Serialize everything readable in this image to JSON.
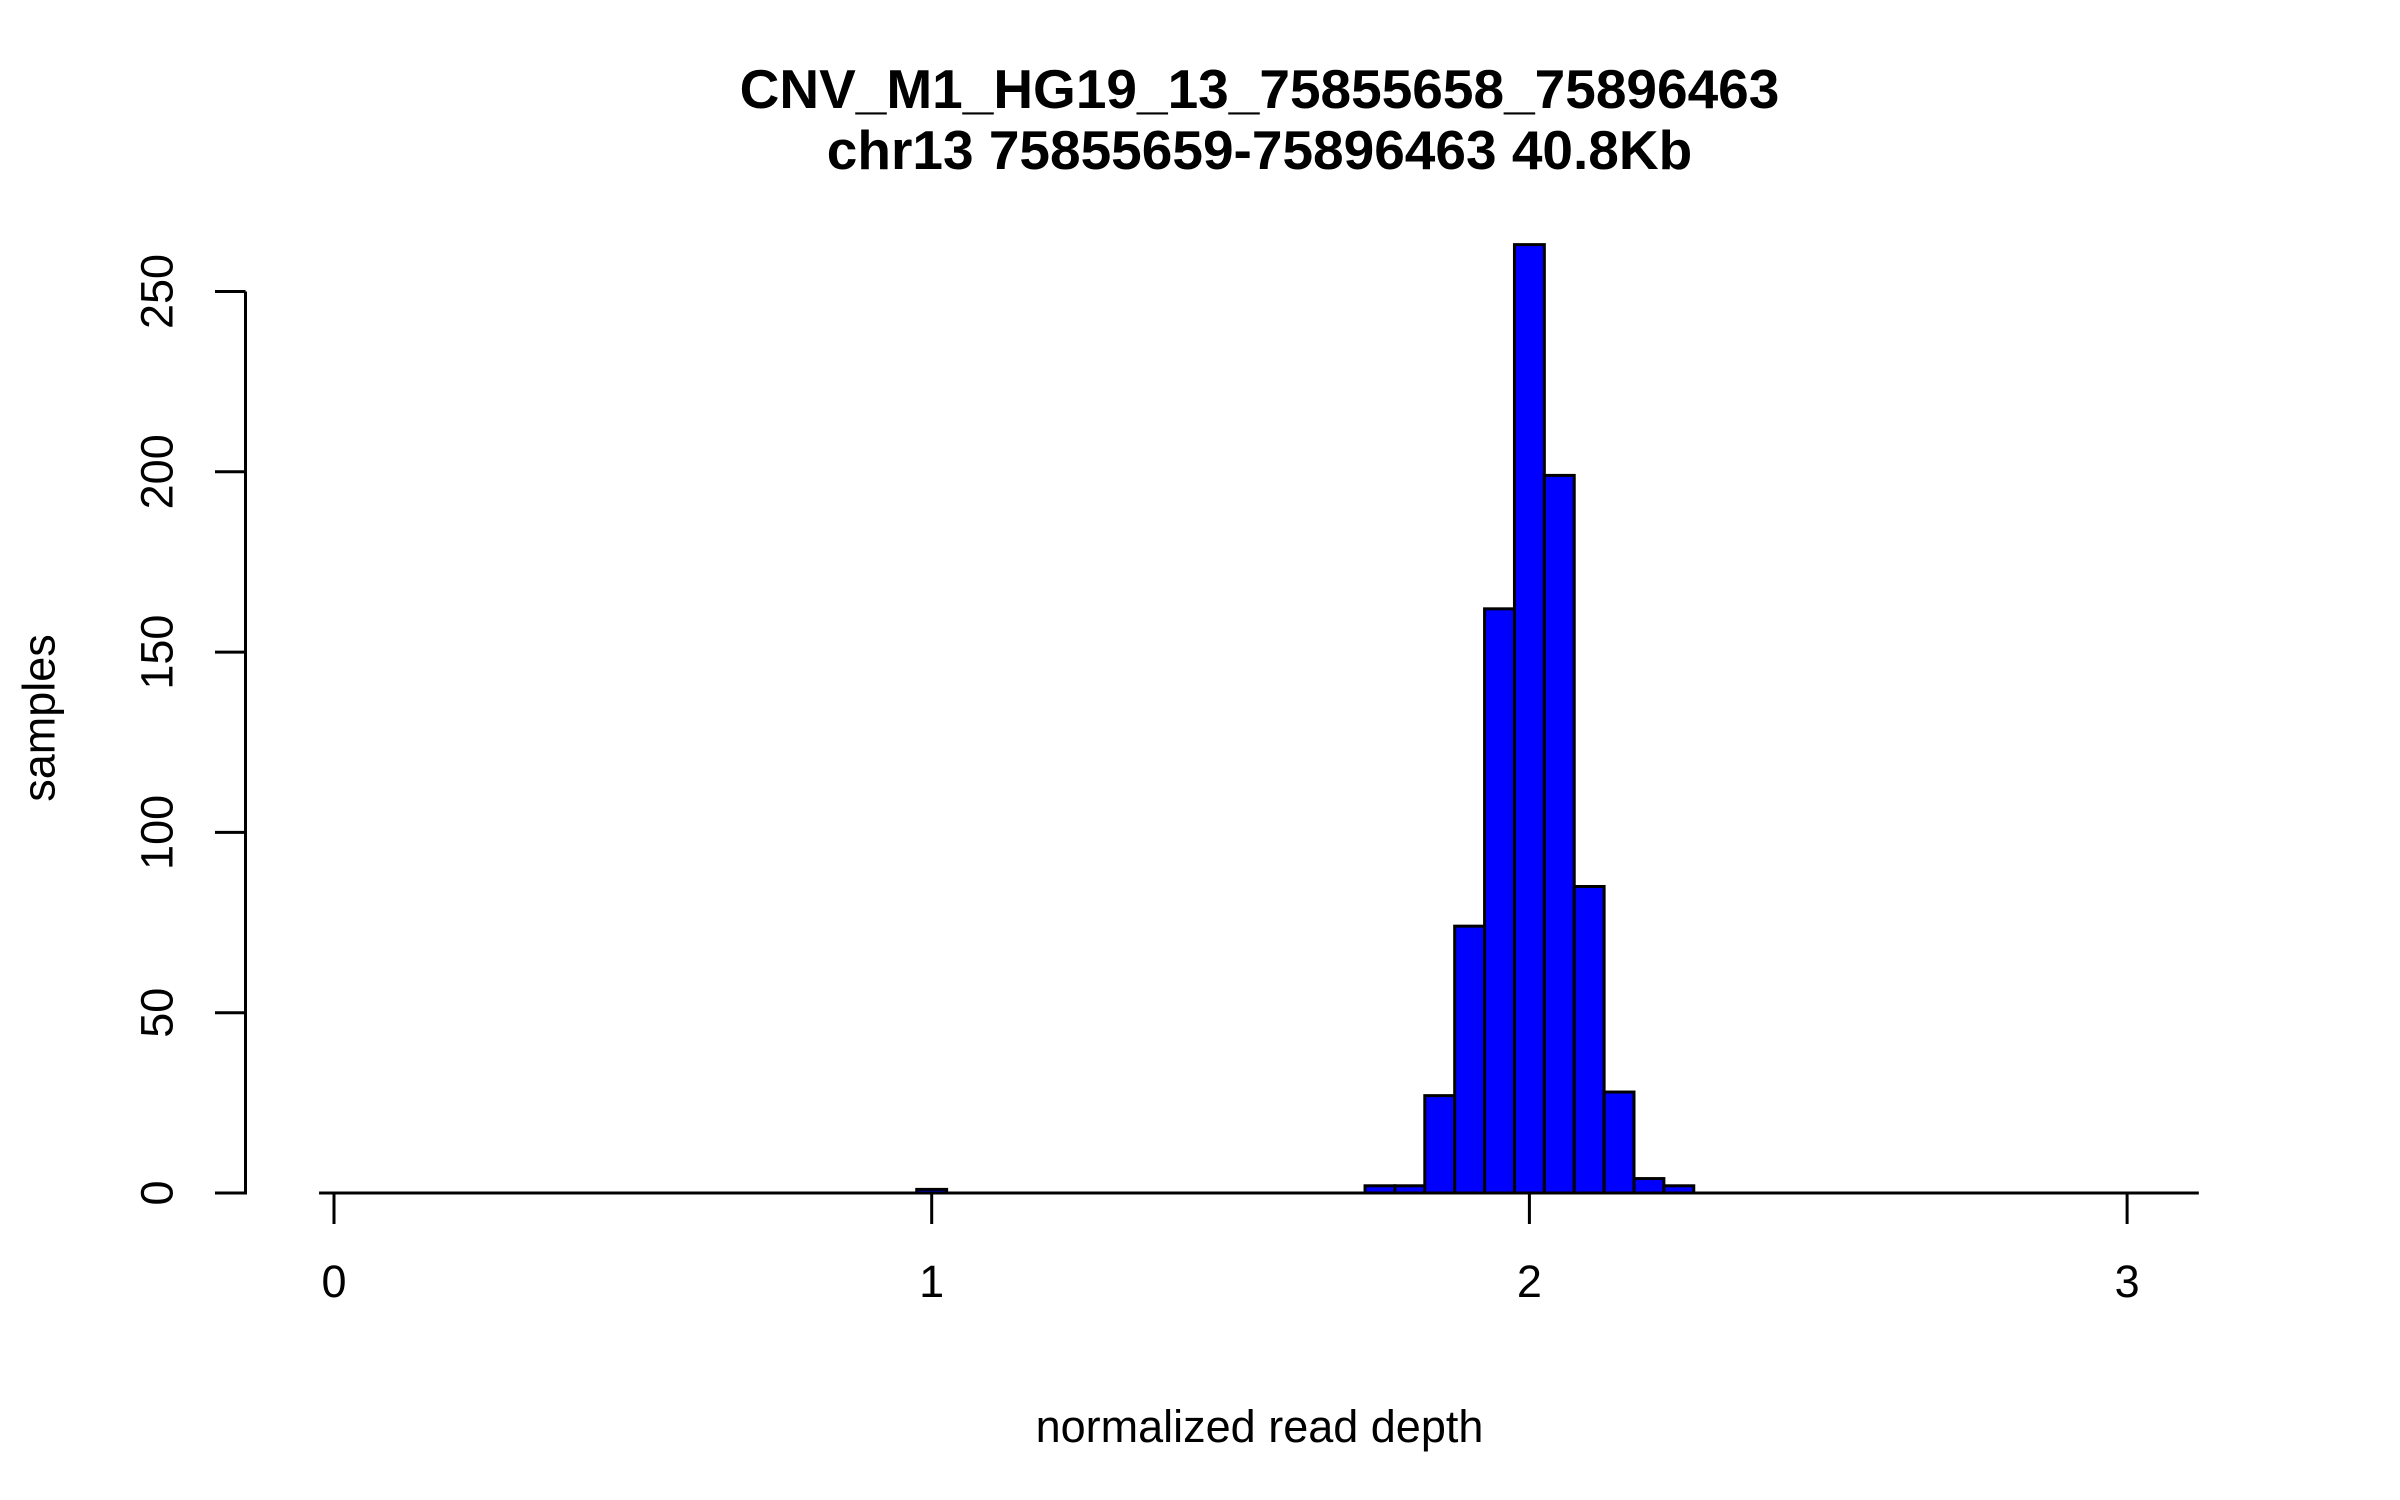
{
  "chart_data": {
    "type": "bar",
    "subtype": "histogram",
    "title": "CNV_M1_HG19_13_75855658_75896463",
    "subtitle": "chr13 75855659-75896463 40.8Kb",
    "xlabel": "normalized read depth",
    "ylabel": "samples",
    "xlim": [
      -0.025,
      3.12
    ],
    "ylim": [
      0,
      263
    ],
    "grid": false,
    "legend": null,
    "background": "#FFFFFF",
    "bar_fill": "#0000FF",
    "bar_stroke": "#000000",
    "axis_color": "#000000",
    "bin_width": 0.05,
    "x_ticks": [
      {
        "value": 0,
        "label": "0"
      },
      {
        "value": 1,
        "label": "1"
      },
      {
        "value": 2,
        "label": "2"
      },
      {
        "value": 3,
        "label": "3"
      }
    ],
    "y_ticks": [
      {
        "value": 0,
        "label": "0"
      },
      {
        "value": 50,
        "label": "50"
      },
      {
        "value": 100,
        "label": "100"
      },
      {
        "value": 150,
        "label": "150"
      },
      {
        "value": 200,
        "label": "200"
      },
      {
        "value": 250,
        "label": "250"
      }
    ],
    "bins": [
      {
        "x0": 0.975,
        "x1": 1.025,
        "count": 1
      },
      {
        "x0": 1.725,
        "x1": 1.775,
        "count": 2
      },
      {
        "x0": 1.775,
        "x1": 1.825,
        "count": 2
      },
      {
        "x0": 1.825,
        "x1": 1.875,
        "count": 27
      },
      {
        "x0": 1.875,
        "x1": 1.925,
        "count": 74
      },
      {
        "x0": 1.925,
        "x1": 1.975,
        "count": 162
      },
      {
        "x0": 1.975,
        "x1": 2.025,
        "count": 263
      },
      {
        "x0": 2.025,
        "x1": 2.075,
        "count": 199
      },
      {
        "x0": 2.075,
        "x1": 2.125,
        "count": 85
      },
      {
        "x0": 2.125,
        "x1": 2.175,
        "count": 28
      },
      {
        "x0": 2.175,
        "x1": 2.225,
        "count": 4
      },
      {
        "x0": 2.225,
        "x1": 2.275,
        "count": 2
      }
    ]
  }
}
